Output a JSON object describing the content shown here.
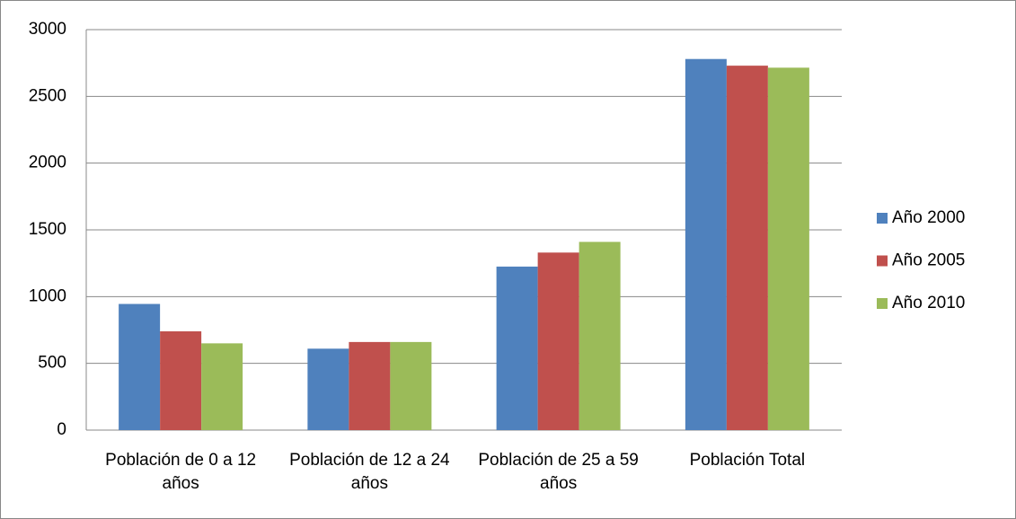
{
  "chart_data": {
    "type": "bar",
    "categories": [
      "Población de 0 a 12 años",
      "Población de 12 a 24 años",
      "Población de 25 a 59 años",
      "Población Total"
    ],
    "series": [
      {
        "name": "Año 2000",
        "color": "#4f81bd",
        "values": [
          945,
          610,
          1225,
          2780
        ]
      },
      {
        "name": "Año 2005",
        "color": "#c0504d",
        "values": [
          740,
          660,
          1330,
          2730
        ]
      },
      {
        "name": "Año 2010",
        "color": "#9bbb59",
        "values": [
          650,
          660,
          1410,
          2715
        ]
      }
    ],
    "ylim": [
      0,
      3000
    ],
    "yticks": [
      0,
      500,
      1000,
      1500,
      2000,
      2500,
      3000
    ],
    "grid": true,
    "legend": "right"
  }
}
